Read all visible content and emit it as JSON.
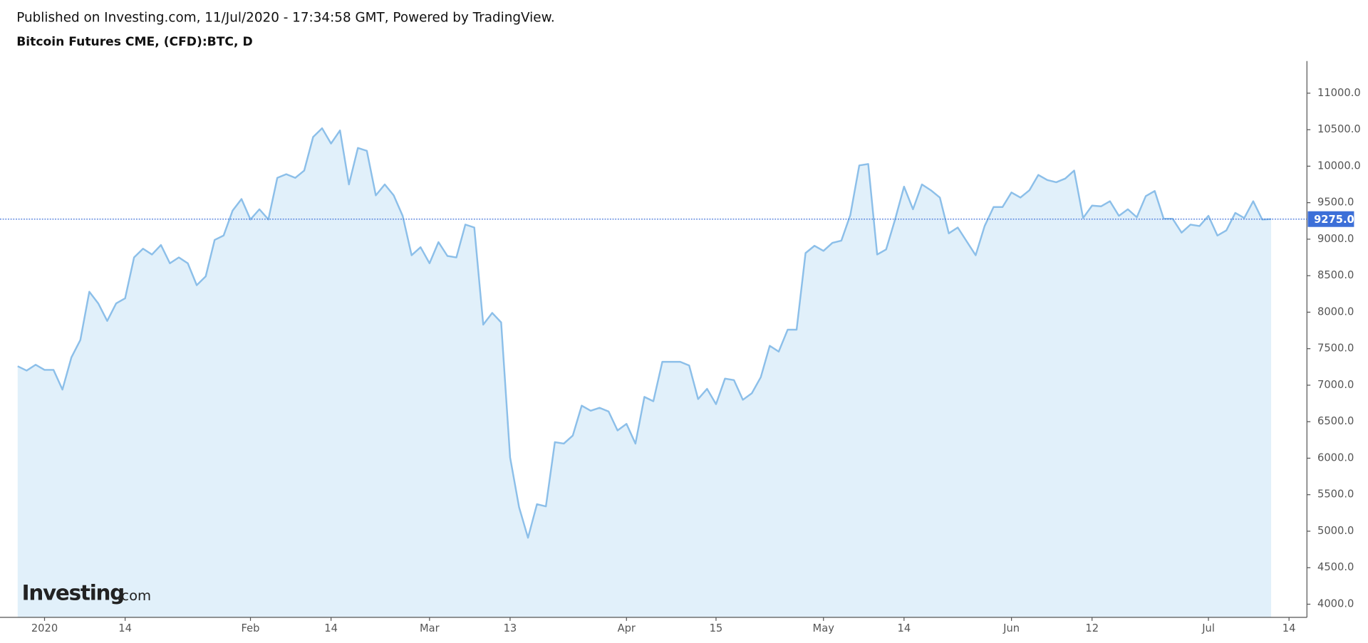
{
  "header": {
    "published": "Published on Investing.com, 11/Jul/2020 - 17:34:58 GMT, Powered by TradingView.",
    "symbol": "Bitcoin Futures CME, (CFD):BTC, D"
  },
  "logo": {
    "name": "Investing",
    "suffix": ".com"
  },
  "chart_data": {
    "type": "area",
    "color": "#8cbfe9",
    "fill": "#e1f0fa",
    "x": [
      "2019-12-27",
      "2019-12-30",
      "2019-12-31",
      "2020-01-01",
      "2020-01-02",
      "2020-01-03",
      "2020-01-06",
      "2020-01-07",
      "2020-01-08",
      "2020-01-09",
      "2020-01-10",
      "2020-01-13",
      "2020-01-14",
      "2020-01-15",
      "2020-01-16",
      "2020-01-17",
      "2020-01-20",
      "2020-01-21",
      "2020-01-22",
      "2020-01-23",
      "2020-01-24",
      "2020-01-27",
      "2020-01-28",
      "2020-01-29",
      "2020-01-30",
      "2020-01-31",
      "2020-02-03",
      "2020-02-04",
      "2020-02-05",
      "2020-02-06",
      "2020-02-07",
      "2020-02-10",
      "2020-02-11",
      "2020-02-12",
      "2020-02-13",
      "2020-02-14",
      "2020-02-17",
      "2020-02-18",
      "2020-02-19",
      "2020-02-20",
      "2020-02-21",
      "2020-02-24",
      "2020-02-25",
      "2020-02-26",
      "2020-02-27",
      "2020-02-28",
      "2020-03-02",
      "2020-03-03",
      "2020-03-04",
      "2020-03-05",
      "2020-03-06",
      "2020-03-09",
      "2020-03-10",
      "2020-03-11",
      "2020-03-12",
      "2020-03-13",
      "2020-03-16",
      "2020-03-17",
      "2020-03-18",
      "2020-03-19",
      "2020-03-20",
      "2020-03-23",
      "2020-03-24",
      "2020-03-25",
      "2020-03-26",
      "2020-03-27",
      "2020-03-30",
      "2020-03-31",
      "2020-04-01",
      "2020-04-02",
      "2020-04-03",
      "2020-04-06",
      "2020-04-07",
      "2020-04-08",
      "2020-04-09",
      "2020-04-10",
      "2020-04-13",
      "2020-04-14",
      "2020-04-15",
      "2020-04-16",
      "2020-04-17",
      "2020-04-20",
      "2020-04-21",
      "2020-04-22",
      "2020-04-23",
      "2020-04-24",
      "2020-04-27",
      "2020-04-28",
      "2020-04-29",
      "2020-04-30",
      "2020-05-01",
      "2020-05-04",
      "2020-05-05",
      "2020-05-06",
      "2020-05-07",
      "2020-05-08",
      "2020-05-11",
      "2020-05-12",
      "2020-05-13",
      "2020-05-14",
      "2020-05-15",
      "2020-05-18",
      "2020-05-19",
      "2020-05-20",
      "2020-05-21",
      "2020-05-22",
      "2020-05-25",
      "2020-05-26",
      "2020-05-27",
      "2020-05-28",
      "2020-05-29",
      "2020-06-01",
      "2020-06-02",
      "2020-06-03",
      "2020-06-04",
      "2020-06-05",
      "2020-06-08",
      "2020-06-09",
      "2020-06-10",
      "2020-06-11",
      "2020-06-12",
      "2020-06-15",
      "2020-06-16",
      "2020-06-17",
      "2020-06-18",
      "2020-06-19",
      "2020-06-22",
      "2020-06-23",
      "2020-06-24",
      "2020-06-25",
      "2020-06-26",
      "2020-06-29",
      "2020-06-30",
      "2020-07-01",
      "2020-07-02",
      "2020-07-03",
      "2020-07-06",
      "2020-07-07",
      "2020-07-08",
      "2020-07-09",
      "2020-07-10"
    ],
    "values": [
      7260,
      7200,
      7280,
      7210,
      7210,
      6940,
      7380,
      7620,
      8280,
      8120,
      7880,
      8120,
      8190,
      8750,
      8870,
      8790,
      8920,
      8670,
      8750,
      8670,
      8370,
      8490,
      8990,
      9050,
      9390,
      9550,
      9270,
      9410,
      9270,
      9840,
      9890,
      9840,
      9940,
      10400,
      10520,
      10310,
      10490,
      9750,
      10250,
      10210,
      9600,
      9750,
      9600,
      9320,
      8780,
      8890,
      8670,
      8960,
      8770,
      8750,
      9200,
      9160,
      7830,
      7990,
      7860,
      6010,
      5330,
      4910,
      5370,
      5340,
      6220,
      6200,
      6310,
      6720,
      6650,
      6690,
      6640,
      6380,
      6470,
      6200,
      6840,
      6780,
      7320,
      7320,
      7320,
      7270,
      6810,
      6950,
      6740,
      7090,
      7070,
      6800,
      6890,
      7110,
      7540,
      7460,
      7760,
      7760,
      8810,
      8910,
      8840,
      8950,
      8980,
      9330,
      10010,
      10030,
      8790,
      8860,
      9270,
      9720,
      9410,
      9750,
      9670,
      9570,
      9080,
      9160,
      8970,
      8780,
      9180,
      9440,
      9440,
      9640,
      9570,
      9670,
      9880,
      9810,
      9780,
      9830,
      9940,
      9290,
      9460,
      9450,
      9520,
      9320,
      9410,
      9300,
      9590,
      9660,
      9280,
      9280,
      9090,
      9200,
      9180,
      9320,
      9050,
      9120,
      9360,
      9290,
      9520,
      9270,
      9275
    ],
    "last_value": {
      "value": 9275,
      "label": "9275.0"
    },
    "last_line_color": "#3c6fd8",
    "xlim": [
      "2019-12-26",
      "2020-07-16"
    ],
    "xticks": [
      {
        "value": "2020-01-01",
        "label": "2020"
      },
      {
        "value": "2020-01-14",
        "label": "14"
      },
      {
        "value": "2020-02-03",
        "label": "Feb"
      },
      {
        "value": "2020-02-14",
        "label": "14"
      },
      {
        "value": "2020-03-02",
        "label": "Mar"
      },
      {
        "value": "2020-03-13",
        "label": "13"
      },
      {
        "value": "2020-04-01",
        "label": "Apr"
      },
      {
        "value": "2020-04-15",
        "label": "15"
      },
      {
        "value": "2020-05-01",
        "label": "May"
      },
      {
        "value": "2020-05-14",
        "label": "14"
      },
      {
        "value": "2020-06-01",
        "label": "Jun"
      },
      {
        "value": "2020-06-12",
        "label": "12"
      },
      {
        "value": "2020-07-01",
        "label": "Jul"
      },
      {
        "value": "2020-07-14",
        "label": "14"
      }
    ],
    "ylim": [
      3820,
      11440
    ],
    "yticks": [
      {
        "value": 4000,
        "label": "4000.0"
      },
      {
        "value": 4500,
        "label": "4500.0"
      },
      {
        "value": 5000,
        "label": "5000.0"
      },
      {
        "value": 5500,
        "label": "5500.0"
      },
      {
        "value": 6000,
        "label": "6000.0"
      },
      {
        "value": 6500,
        "label": "6500.0"
      },
      {
        "value": 7000,
        "label": "7000.0"
      },
      {
        "value": 7500,
        "label": "7500.0"
      },
      {
        "value": 8000,
        "label": "8000.0"
      },
      {
        "value": 8500,
        "label": "8500.0"
      },
      {
        "value": 9000,
        "label": "9000.0"
      },
      {
        "value": 9500,
        "label": "9500.0"
      },
      {
        "value": 10000,
        "label": "10000.0"
      },
      {
        "value": 10500,
        "label": "10500.0"
      },
      {
        "value": 11000,
        "label": "11000.0"
      }
    ]
  }
}
